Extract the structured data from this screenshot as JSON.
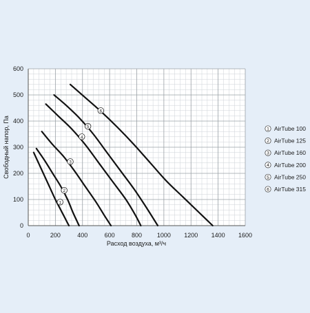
{
  "chart_data": {
    "type": "line",
    "xlabel": "Расход  воздуха, м³/ч",
    "ylabel": "Свободный напор, Па",
    "xlim": [
      0,
      1600
    ],
    "ylim": [
      0,
      600
    ],
    "x_ticks": [
      "0",
      "200",
      "400",
      "600",
      "800",
      "1000",
      "1200",
      "1400",
      "1600"
    ],
    "y_ticks": [
      "0",
      "100",
      "200",
      "300",
      "400",
      "500",
      "600"
    ],
    "grid": true,
    "legend_position": "right",
    "series": [
      {
        "id": "1",
        "name": "AirTube 100",
        "marker_at": [
          235,
          90
        ],
        "points": [
          [
            40,
            280
          ],
          [
            80,
            235
          ],
          [
            120,
            190
          ],
          [
            160,
            145
          ],
          [
            200,
            100
          ],
          [
            240,
            60
          ],
          [
            270,
            30
          ],
          [
            300,
            0
          ]
        ]
      },
      {
        "id": "2",
        "name": "AirTube 125",
        "marker_at": [
          265,
          135
        ],
        "points": [
          [
            60,
            295
          ],
          [
            120,
            250
          ],
          [
            180,
            200
          ],
          [
            240,
            150
          ],
          [
            290,
            100
          ],
          [
            330,
            50
          ],
          [
            375,
            0
          ]
        ]
      },
      {
        "id": "3",
        "name": "AirTube 160",
        "marker_at": [
          310,
          245
        ],
        "points": [
          [
            100,
            360
          ],
          [
            180,
            310
          ],
          [
            260,
            265
          ],
          [
            340,
            210
          ],
          [
            420,
            150
          ],
          [
            500,
            90
          ],
          [
            560,
            40
          ],
          [
            610,
            0
          ]
        ]
      },
      {
        "id": "4",
        "name": "AirTube 200",
        "marker_at": [
          395,
          340
        ],
        "points": [
          [
            130,
            465
          ],
          [
            220,
            420
          ],
          [
            320,
            370
          ],
          [
            420,
            310
          ],
          [
            520,
            240
          ],
          [
            620,
            170
          ],
          [
            720,
            100
          ],
          [
            790,
            40
          ],
          [
            830,
            0
          ]
        ]
      },
      {
        "id": "5",
        "name": "AirTube 250",
        "marker_at": [
          440,
          380
        ],
        "points": [
          [
            190,
            500
          ],
          [
            280,
            460
          ],
          [
            380,
            410
          ],
          [
            480,
            350
          ],
          [
            580,
            280
          ],
          [
            680,
            210
          ],
          [
            780,
            140
          ],
          [
            870,
            70
          ],
          [
            955,
            0
          ]
        ]
      },
      {
        "id": "6",
        "name": "AirTube 315",
        "marker_at": [
          535,
          440
        ],
        "points": [
          [
            310,
            540
          ],
          [
            420,
            490
          ],
          [
            540,
            435
          ],
          [
            660,
            375
          ],
          [
            780,
            310
          ],
          [
            900,
            240
          ],
          [
            1020,
            170
          ],
          [
            1140,
            110
          ],
          [
            1260,
            50
          ],
          [
            1360,
            0
          ]
        ]
      }
    ]
  },
  "colors": {
    "background": "#e5eef8",
    "plot_background": "#ffffff",
    "major_grid": "#9aa0a6",
    "minor_grid": "#cdd2d7",
    "curve": "#111111",
    "text": "#1b1b1b"
  }
}
